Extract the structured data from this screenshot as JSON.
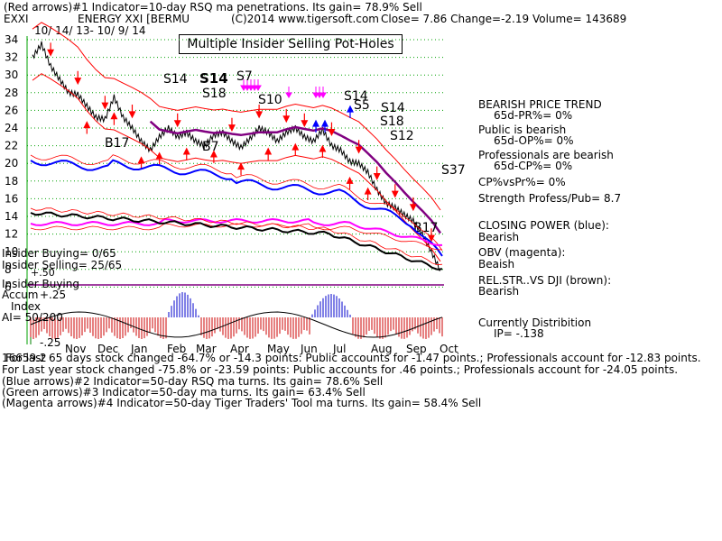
{
  "header": {
    "line1": "(Red arrows)#1 Indicator=10-day RSQ ma penetrations. Its gain= 78.9% Sell",
    "ticker": "EXXI",
    "name": "ENERGY XXI [BERMU",
    "copyright": "(C)2014 www.tigersoft.com",
    "close": "Close=  7.86  Change=-2.19 Volume= 143689"
  },
  "chart_title": "Multiple Insider Selling Pot-Holes",
  "date_range": "10/ 14/ 13- 10/ 9/ 14",
  "right_panel": [
    {
      "text": "BEARISH PRICE TREND",
      "indent": 0
    },
    {
      "text": "65d-PR%= 0%",
      "indent": 1
    },
    {
      "text": "Public is bearish",
      "indent": 0
    },
    {
      "text": "65d-OP%= 0%",
      "indent": 1
    },
    {
      "text": "Professionals are bearish",
      "indent": 0
    },
    {
      "text": "65d-CP%= 0%",
      "indent": 1
    },
    {
      "text": "CP%vsPr%=  0%",
      "indent": 0
    },
    {
      "text": "Strength Profess/Pub= 8.7",
      "indent": 0
    },
    {
      "text": "CLOSING POWER (blue):",
      "indent": 0
    },
    {
      "text": "Bearish",
      "indent": 0
    },
    {
      "text": "OBV (magenta):",
      "indent": 0
    },
    {
      "text": "Beaish",
      "indent": 0
    },
    {
      "text": "REL.STR..VS DJI (brown):",
      "indent": 0
    },
    {
      "text": "Bearish",
      "indent": 0
    },
    {
      "text": "Currently Distribition",
      "indent": 0
    },
    {
      "text": "IP= -.138",
      "indent": 1
    }
  ],
  "left_labels": {
    "insider_buying_count": "Insider Buying= 0/65",
    "insider_selling_count": "Insider Selling= 25/65",
    "insider_buying": "Insider Buying",
    "accum": "Accum",
    "plus25": "+.25",
    "index": "Index",
    "ai": "AI= 50/200",
    "minus25": "-.25",
    "plus50": "+.50"
  },
  "footer": [
    "For last 65 days stock changed -64.7% or -14.3 points:  Public accounts for -1.47 points.;  Professionals account for -12.83 points.",
    "For Last year stock changed -75.8% or -23.59 points:  Public accounts for  .46 points.;  Professionals account for -24.05 points.",
    "(Blue arrows)#2 Indicator=50-day RSQ ma turns. Its gain= 78.6% Sell",
    "(Green arrows)#3 Indicator=50-day ma turns. Its gain= 63.4% Sell",
    "(Magenta arrows)#4 Indicator=50-day Tiger Traders' Tool ma turns. Its gain= 58.4% Sell"
  ],
  "footer_overlap": "16659.2",
  "signals": [
    {
      "text": "S14",
      "bold": false
    },
    {
      "text": "S14",
      "bold": true
    },
    {
      "text": "S7",
      "bold": false
    },
    {
      "text": "S18",
      "bold": false
    },
    {
      "text": "S10",
      "bold": false
    },
    {
      "text": "S14",
      "bold": false
    },
    {
      "text": "S5",
      "bold": false
    },
    {
      "text": "S14",
      "bold": false
    },
    {
      "text": "S18",
      "bold": false
    },
    {
      "text": "S12",
      "bold": false
    },
    {
      "text": "S37",
      "bold": false
    },
    {
      "text": "B17",
      "bold": false
    },
    {
      "text": "B7",
      "bold": false
    },
    {
      "text": "B17",
      "bold": false
    }
  ],
  "colors": {
    "price": "#000000",
    "grid": "#00a000",
    "red": "#ff0000",
    "blue": "#0000ff",
    "purple": "#800080",
    "magenta": "#ff00ff",
    "brown": "#000000",
    "hist_red": "#cc0000",
    "hist_blue": "#0000cc"
  },
  "chart_data": {
    "type": "line",
    "ylim": [
      6,
      34
    ],
    "yticks": [
      34,
      32,
      30,
      28,
      26,
      24,
      22,
      20,
      18,
      16,
      14,
      12,
      10,
      8,
      6
    ],
    "xticks": [
      "Nov",
      "Dec",
      "Jan",
      "Feb",
      "Mar",
      "Apr",
      "May",
      "Jun",
      "Jul",
      "Aug",
      "Sep",
      "Oct"
    ],
    "series": [
      {
        "name": "price",
        "values": [
          32,
          33.5,
          31,
          29.5,
          28,
          27.8,
          26.5,
          25.2,
          25,
          27.5,
          25.2,
          24,
          22.5,
          21.5,
          23,
          24,
          23,
          23.5,
          22.5,
          22,
          23.2,
          23.5,
          22.5,
          21.8,
          22.8,
          24,
          23.5,
          22.5,
          23.5,
          24,
          23,
          22.5,
          23.8,
          22,
          21.5,
          20.2,
          20,
          19,
          17,
          15.5,
          15,
          14.2,
          13.5,
          12,
          10,
          7.86
        ]
      },
      {
        "name": "CLOSING POWER (blue)"
      },
      {
        "name": "OBV (magenta)"
      },
      {
        "name": "REL.STR..VS DJI (brown)"
      }
    ]
  }
}
